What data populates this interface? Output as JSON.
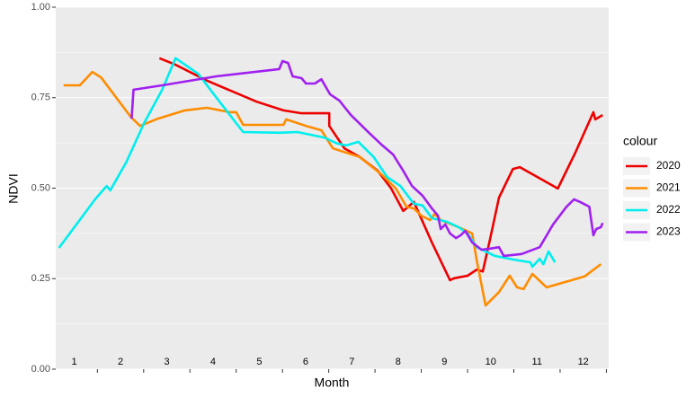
{
  "chart_data": {
    "type": "line",
    "x_label": "Month",
    "y_label": "NDVI",
    "legend_title": "colour",
    "legend": "right",
    "grid": true,
    "xlim": [
      0.6,
      12.55
    ],
    "ylim": [
      0,
      1
    ],
    "xticks": [
      1,
      2,
      3,
      4,
      5,
      6,
      7,
      8,
      9,
      10,
      11,
      12
    ],
    "xminorticks": [
      1.5,
      2.5,
      3.5,
      4.5,
      5.5,
      6.5,
      7.5,
      8.5,
      9.5,
      10.5,
      11.5,
      12.5
    ],
    "yticks": [
      {
        "value": 0,
        "label": "0.00"
      },
      {
        "value": 0.25,
        "label": "0.25"
      },
      {
        "value": 0.5,
        "label": "0.50"
      },
      {
        "value": 0.75,
        "label": "0.75"
      },
      {
        "value": 1,
        "label": "1.00"
      }
    ],
    "series": [
      {
        "name": "2020",
        "color": "#ee0000",
        "x": [
          2.84,
          3.19,
          3.87,
          4.94,
          5.52,
          5.91,
          6.51,
          6.51,
          6.84,
          7.17,
          7.56,
          7.85,
          8.11,
          8.34,
          8.73,
          9.12,
          9.21,
          9.5,
          9.7,
          9.83,
          9.99,
          10.18,
          10.48,
          10.63,
          11.45,
          11.83,
          12.22,
          12.26,
          12.42
        ],
        "values": [
          0.859,
          0.841,
          0.797,
          0.739,
          0.715,
          0.707,
          0.707,
          0.672,
          0.61,
          0.586,
          0.548,
          0.499,
          0.437,
          0.462,
          0.35,
          0.246,
          0.251,
          0.258,
          0.275,
          0.27,
          0.362,
          0.474,
          0.553,
          0.558,
          0.499,
          0.598,
          0.71,
          0.69,
          0.702
        ]
      },
      {
        "name": "2021",
        "color": "#ff8c00",
        "x": [
          0.77,
          1.12,
          1.39,
          1.58,
          2.22,
          2.42,
          2.81,
          3.39,
          3.87,
          4.36,
          4.5,
          4.65,
          5.52,
          5.58,
          6.01,
          6.34,
          6.59,
          7.17,
          7.66,
          7.95,
          8.18,
          8.34,
          8.5,
          8.69,
          8.79,
          8.92,
          9.31,
          9.6,
          9.7,
          9.89,
          10.18,
          10.41,
          10.57,
          10.71,
          10.9,
          11.21,
          12.03,
          12.38
        ],
        "values": [
          0.784,
          0.784,
          0.821,
          0.806,
          0.697,
          0.672,
          0.692,
          0.715,
          0.722,
          0.71,
          0.71,
          0.675,
          0.675,
          0.69,
          0.672,
          0.66,
          0.61,
          0.586,
          0.536,
          0.499,
          0.449,
          0.444,
          0.424,
          0.412,
          0.429,
          0.412,
          0.392,
          0.375,
          0.3,
          0.176,
          0.213,
          0.258,
          0.226,
          0.221,
          0.263,
          0.226,
          0.256,
          0.29
        ]
      },
      {
        "name": "2022",
        "color": "#00eeee",
        "x": [
          0.67,
          1.45,
          1.7,
          1.78,
          2.13,
          2.51,
          2.9,
          3.19,
          3.68,
          4.17,
          4.65,
          5.43,
          5.82,
          6.4,
          6.69,
          6.88,
          7.14,
          7.47,
          7.76,
          8.05,
          8.34,
          8.53,
          8.73,
          9.06,
          9.31,
          9.5,
          9.7,
          10.09,
          10.48,
          10.86,
          10.9,
          11.06,
          11.14,
          11.25,
          11.39
        ],
        "values": [
          0.335,
          0.469,
          0.506,
          0.494,
          0.573,
          0.68,
          0.772,
          0.859,
          0.816,
          0.734,
          0.655,
          0.653,
          0.655,
          0.64,
          0.623,
          0.618,
          0.628,
          0.586,
          0.531,
          0.506,
          0.457,
          0.452,
          0.417,
          0.407,
          0.392,
          0.375,
          0.337,
          0.313,
          0.303,
          0.295,
          0.283,
          0.305,
          0.29,
          0.325,
          0.295
        ]
      },
      {
        "name": "2023",
        "color": "#a020f0",
        "x": [
          2.24,
          2.28,
          2.9,
          4.07,
          5.43,
          5.5,
          5.62,
          5.72,
          5.91,
          6.01,
          6.2,
          6.34,
          6.53,
          6.73,
          6.98,
          7.37,
          7.66,
          7.89,
          8.11,
          8.3,
          8.53,
          8.73,
          8.86,
          8.92,
          9.02,
          9.12,
          9.25,
          9.35,
          9.45,
          9.6,
          9.8,
          9.99,
          10.18,
          10.28,
          10.67,
          11.06,
          11.35,
          11.64,
          11.8,
          11.93,
          12.13,
          12.22,
          12.28,
          12.38,
          12.42
        ],
        "values": [
          0.692,
          0.772,
          0.784,
          0.809,
          0.829,
          0.851,
          0.846,
          0.809,
          0.804,
          0.789,
          0.789,
          0.801,
          0.759,
          0.742,
          0.702,
          0.653,
          0.618,
          0.593,
          0.548,
          0.506,
          0.479,
          0.444,
          0.424,
          0.387,
          0.4,
          0.375,
          0.362,
          0.37,
          0.382,
          0.35,
          0.33,
          0.333,
          0.337,
          0.313,
          0.318,
          0.337,
          0.4,
          0.449,
          0.469,
          0.462,
          0.449,
          0.37,
          0.387,
          0.392,
          0.404
        ]
      }
    ]
  }
}
